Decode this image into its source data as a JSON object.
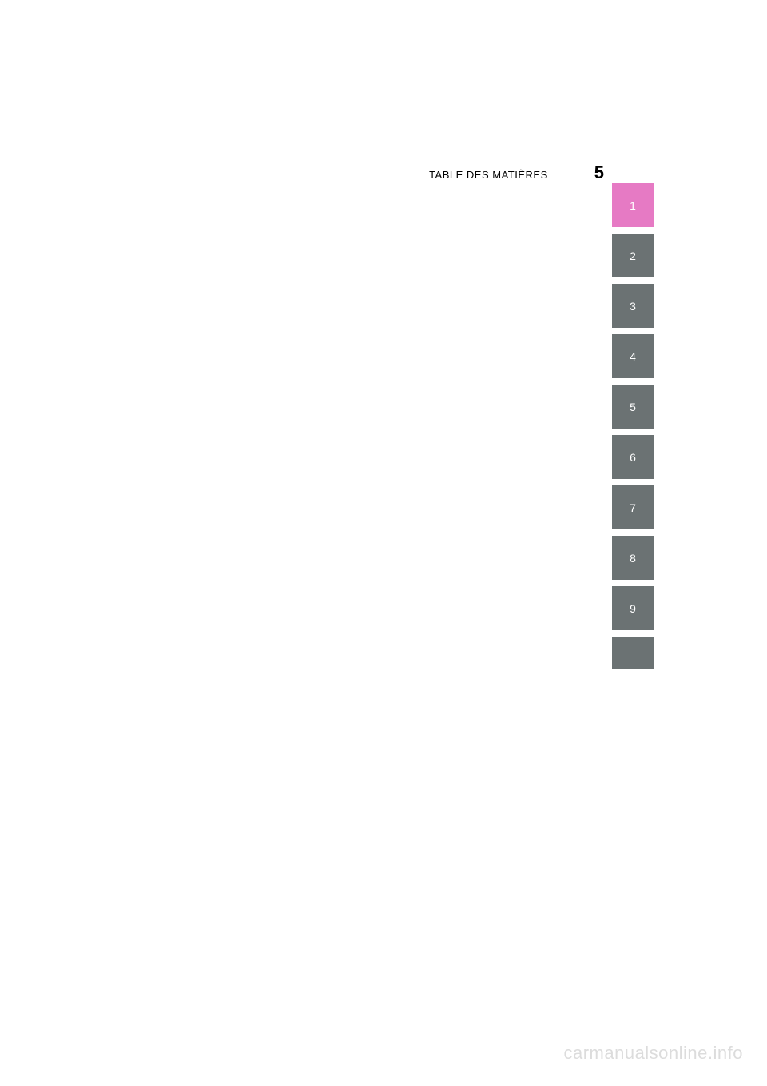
{
  "header": {
    "title": "TABLE DES MATIÈRES",
    "page_number": "5"
  },
  "tabs": [
    {
      "label": "1",
      "active": true
    },
    {
      "label": "2",
      "active": false
    },
    {
      "label": "3",
      "active": false
    },
    {
      "label": "4",
      "active": false
    },
    {
      "label": "5",
      "active": false
    },
    {
      "label": "6",
      "active": false
    },
    {
      "label": "7",
      "active": false
    },
    {
      "label": "8",
      "active": false
    },
    {
      "label": "9",
      "active": false
    }
  ],
  "watermark": "carmanualsonline.info",
  "colors": {
    "active_tab": "#e67ac4",
    "inactive_tab": "#6b7273",
    "background": "#ffffff",
    "text": "#000000",
    "tab_text": "#ffffff",
    "watermark": "#dcdcdc"
  }
}
